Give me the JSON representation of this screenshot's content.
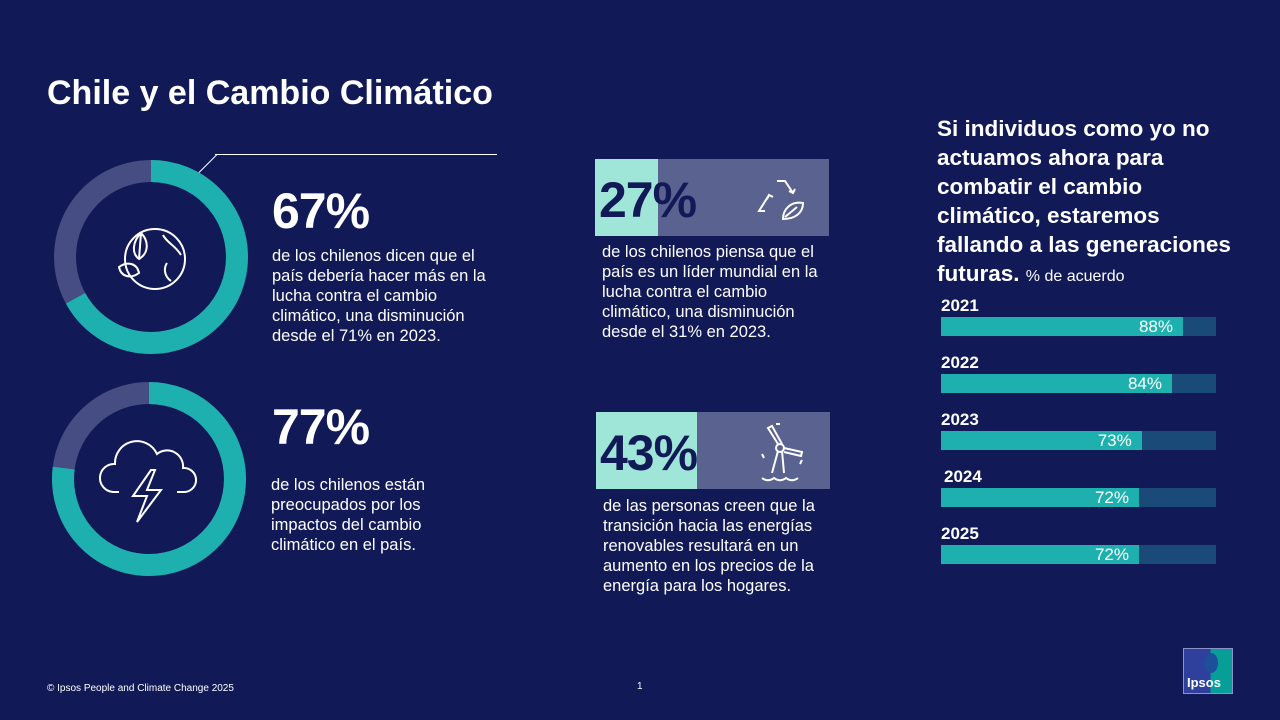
{
  "title": "Chile y el Cambio Climático",
  "stats": [
    {
      "value": "67%",
      "text": "de los chilenos dicen que el país debería hacer más en la lucha contra el cambio climático, una disminución desde el 71% en 2023.",
      "icon": "earth-leaf-icon",
      "percent": 67
    },
    {
      "value": "77%",
      "text": "de los chilenos están preocupados por los impactos del cambio climático en el país.",
      "icon": "storm-cloud-icon",
      "percent": 77
    },
    {
      "value": "27%",
      "text": "de los chilenos piensa que el país es un líder mundial en la lucha contra el cambio climático, una disminución desde el 31% en 2023.",
      "icon": "recycle-leaf-icon",
      "percent": 27
    },
    {
      "value": "43%",
      "text": "de las personas creen que la transición hacia las energías renovables resultará en un aumento en los precios de la energía para los hogares.",
      "icon": "wind-turbine-icon",
      "percent": 43
    }
  ],
  "colors": {
    "background": "#111a57",
    "teal": "#1eb0ae",
    "ring_rest": "#464d82",
    "mint": "#9fe5d8",
    "track": "#1a4a78"
  },
  "chart_data": {
    "type": "bar",
    "title": "Si individuos como yo no actuamos ahora para combatir el cambio climático, estaremos fallando a las generaciones futuras.",
    "subtitle": "% de acuerdo",
    "categories": [
      "2021",
      "2022",
      "2023",
      "2024",
      "2025"
    ],
    "values": [
      88,
      84,
      73,
      72,
      72
    ],
    "labels": [
      "88%",
      "84%",
      "73%",
      "72%",
      "72%"
    ],
    "ylim": [
      0,
      100
    ],
    "orientation": "horizontal"
  },
  "footer": "© Ipsos People and Climate Change 2025",
  "page_number": "1",
  "logo": "Ipsos"
}
